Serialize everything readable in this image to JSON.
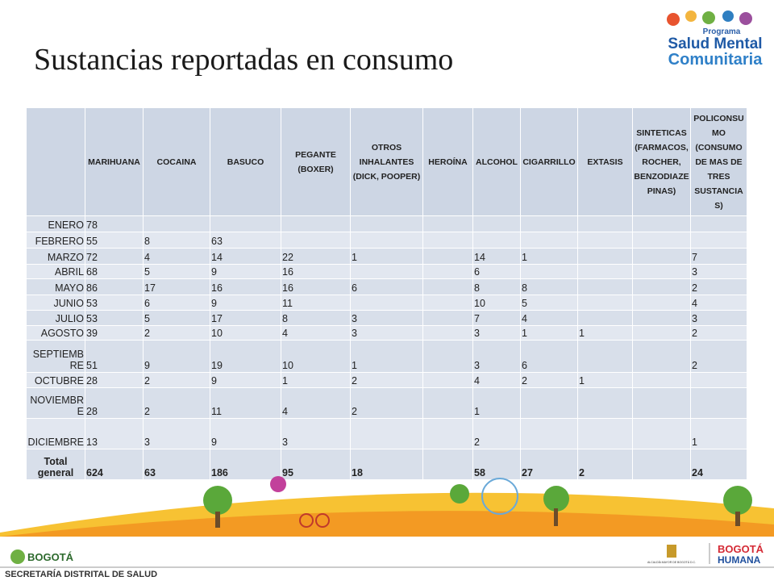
{
  "title": "Sustancias reportadas en consumo",
  "logo": {
    "program": "Programa",
    "line1": "Salud Mental",
    "line2": "Comunitaria"
  },
  "table": {
    "columns": [
      "MARIHUANA",
      "COCAINA",
      "BASUCO",
      "PEGANTE (BOXER)",
      "OTROS INHALANTES (DICK, POOPER)",
      "HEROÍNA",
      "ALCOHOL",
      "CIGARRILLO",
      "EXTASIS",
      "SINTETICAS (FARMACOS, ROCHER, BENZODIAZEPINAS)",
      "POLICONSUMO (CONSUMO DE MAS DE TRES SUSTANCIAS)"
    ],
    "rows": [
      {
        "label": "ENERO",
        "cells": [
          78,
          null,
          null,
          null,
          null,
          null,
          null,
          null,
          null,
          null,
          null
        ]
      },
      {
        "label": "FEBRERO",
        "cells": [
          55,
          8,
          63,
          null,
          null,
          null,
          null,
          null,
          null,
          null,
          null
        ]
      },
      {
        "label": "MARZO",
        "cells": [
          72,
          4,
          14,
          22,
          1,
          null,
          14,
          1,
          null,
          null,
          7
        ]
      },
      {
        "label": "ABRIL",
        "cells": [
          68,
          5,
          9,
          16,
          null,
          null,
          6,
          null,
          null,
          null,
          3
        ]
      },
      {
        "label": "MAYO",
        "cells": [
          86,
          17,
          16,
          16,
          6,
          null,
          8,
          8,
          null,
          null,
          2
        ]
      },
      {
        "label": "JUNIO",
        "cells": [
          53,
          6,
          9,
          11,
          null,
          null,
          10,
          5,
          null,
          null,
          4
        ]
      },
      {
        "label": "JULIO",
        "cells": [
          53,
          5,
          17,
          8,
          3,
          null,
          7,
          4,
          null,
          null,
          3
        ]
      },
      {
        "label": "AGOSTO",
        "cells": [
          39,
          2,
          10,
          4,
          3,
          null,
          3,
          1,
          1,
          null,
          2
        ]
      },
      {
        "label": "SEPTIEMBRE",
        "cells": [
          51,
          9,
          19,
          10,
          1,
          null,
          3,
          6,
          null,
          null,
          2
        ]
      },
      {
        "label": "OCTUBRE",
        "cells": [
          28,
          2,
          9,
          1,
          2,
          null,
          4,
          2,
          1,
          null,
          null
        ]
      },
      {
        "label": "NOVIEMBRE",
        "cells": [
          28,
          2,
          11,
          4,
          2,
          null,
          1,
          null,
          null,
          null,
          null
        ]
      },
      {
        "label": "DICIEMBRE",
        "cells": [
          13,
          3,
          9,
          3,
          null,
          null,
          2,
          null,
          null,
          null,
          1
        ]
      },
      {
        "label": "Total general",
        "cells": [
          624,
          63,
          186,
          95,
          18,
          null,
          58,
          27,
          2,
          null,
          24
        ]
      }
    ]
  },
  "footer": {
    "left_logo": "BOGOTÁ",
    "secretaria": "SECRETARÍA DISTRITAL DE SALUD",
    "alcaldia": "ALCALDÍA MAYOR DE BOGOTÁ D.C.",
    "right_logo1": "BOGOTÁ",
    "right_logo2": "HUMANA"
  }
}
